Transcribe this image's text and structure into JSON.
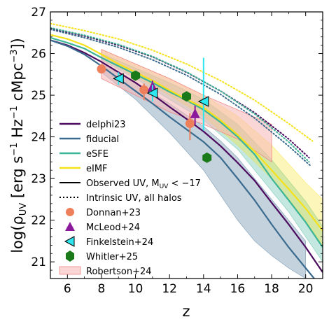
{
  "chart_data": {
    "type": "line",
    "xlabel": "z",
    "ylabel_parts": [
      "log(ρ",
      "UV",
      " [erg s",
      "−1",
      " Hz",
      "−1",
      " cMpc",
      "−3",
      "])"
    ],
    "xlim": [
      5,
      21
    ],
    "ylim": [
      20.6,
      27
    ],
    "x_ticks": [
      6,
      8,
      10,
      12,
      14,
      16,
      18,
      20
    ],
    "y_ticks": [
      21,
      22,
      23,
      24,
      25,
      26,
      27
    ],
    "grid": false,
    "legend_position": "lower-left",
    "legend": {
      "delphi23": "delphi23",
      "fiducial": "fiducial",
      "esfe": "eSFE",
      "eimf": "eIMF",
      "observed": [
        "Observed UV, M",
        "UV",
        " < −17"
      ],
      "intrinsic": "Intrinsic UV, all halos",
      "donnan": "Donnan+23",
      "mcleod": "McLeod+24",
      "finkelstein": "Finkelstein+24",
      "whitler": "Whitler+25",
      "robertson": "Robertson+24"
    },
    "colors": {
      "delphi23": "#4b0a5e",
      "fiducial": "#3a6b8f",
      "esfe": "#3cb496",
      "eimf": "#f5e21a",
      "donnan": "#ee7f5b",
      "mcleod": "#8a1a9b",
      "finkelstein": "#2ee6f0",
      "whitler": "#1a7a1a",
      "robertson": "#f8b4b4"
    },
    "series": [
      {
        "key": "delphi23",
        "style": "solid",
        "x": [
          5,
          6,
          7,
          8,
          9,
          10,
          11,
          12,
          13,
          14,
          15,
          16,
          17,
          18,
          19,
          20,
          21
        ],
        "y": [
          26.32,
          26.2,
          26.02,
          25.8,
          25.55,
          25.3,
          25.02,
          24.72,
          24.43,
          24.13,
          23.78,
          23.38,
          22.95,
          22.42,
          21.9,
          21.35,
          20.75
        ]
      },
      {
        "key": "fiducial",
        "style": "solid",
        "x": [
          5,
          6,
          7,
          8,
          9,
          10,
          11,
          12,
          13,
          14,
          15,
          16,
          17,
          18,
          19,
          20,
          20.5
        ],
        "y": [
          26.32,
          26.18,
          25.98,
          25.7,
          25.4,
          25.1,
          24.8,
          24.48,
          24.18,
          23.88,
          23.5,
          23.0,
          22.48,
          21.9,
          21.35,
          20.85,
          20.6
        ]
      },
      {
        "key": "esfe",
        "style": "solid",
        "x": [
          5,
          6,
          7,
          8,
          9,
          10,
          11,
          12,
          13,
          14,
          15,
          16,
          17,
          18,
          19,
          20,
          21
        ],
        "y": [
          26.38,
          26.26,
          26.12,
          25.9,
          25.7,
          25.5,
          25.3,
          25.08,
          24.88,
          24.65,
          24.35,
          24.0,
          23.58,
          23.0,
          22.48,
          21.95,
          21.35
        ]
      },
      {
        "key": "eimf",
        "style": "solid",
        "x": [
          5,
          6,
          7,
          8,
          9,
          10,
          11,
          12,
          13,
          14,
          15,
          16,
          17,
          18,
          19,
          20,
          21
        ],
        "y": [
          26.45,
          26.35,
          26.2,
          25.98,
          25.75,
          25.55,
          25.35,
          25.12,
          24.9,
          24.7,
          24.4,
          24.05,
          23.65,
          23.2,
          22.75,
          22.28,
          21.75
        ]
      },
      {
        "key": "delphi23",
        "style": "dotted",
        "x": [
          5,
          7,
          9,
          11,
          13,
          15,
          17,
          19,
          20.2
        ],
        "y": [
          26.6,
          26.42,
          26.2,
          25.92,
          25.55,
          25.1,
          24.58,
          23.95,
          23.5
        ]
      },
      {
        "key": "fiducial",
        "style": "dotted",
        "x": [
          5,
          7,
          9,
          11,
          13,
          15,
          17,
          19,
          20.3
        ],
        "y": [
          26.58,
          26.38,
          26.15,
          25.85,
          25.48,
          25.02,
          24.45,
          23.78,
          23.3
        ]
      },
      {
        "key": "esfe",
        "style": "dotted",
        "x": [
          5,
          7,
          9,
          11,
          13,
          15,
          17,
          19,
          20.2
        ],
        "y": [
          26.62,
          26.44,
          26.22,
          25.93,
          25.56,
          25.1,
          24.55,
          23.88,
          23.4
        ]
      },
      {
        "key": "eimf",
        "style": "dotted",
        "x": [
          5,
          7,
          9,
          11,
          13,
          15,
          17,
          19,
          20.4
        ],
        "y": [
          26.72,
          26.55,
          26.35,
          26.08,
          25.75,
          25.35,
          24.88,
          24.32,
          23.9
        ]
      }
    ],
    "bands": [
      {
        "key": "fiducial",
        "x": [
          8,
          10,
          12,
          14,
          15,
          16,
          17,
          18,
          19,
          20
        ],
        "lo": [
          25.55,
          24.9,
          24.1,
          23.2,
          22.6,
          22.0,
          21.5,
          21.15,
          20.85,
          20.6
        ],
        "hi": [
          25.8,
          25.3,
          24.8,
          24.25,
          23.9,
          23.5,
          23.0,
          22.5,
          22.0,
          21.5
        ]
      },
      {
        "key": "esfe",
        "x": [
          8,
          10,
          12,
          14,
          16,
          18,
          19,
          20,
          21
        ],
        "lo": [
          25.85,
          25.4,
          24.9,
          24.4,
          23.7,
          22.7,
          22.2,
          21.6,
          21.0
        ],
        "hi": [
          26.0,
          25.65,
          25.3,
          24.9,
          24.3,
          23.45,
          22.95,
          22.45,
          21.85
        ]
      },
      {
        "key": "eimf",
        "x": [
          8,
          10,
          12,
          14,
          16,
          18,
          19,
          20,
          21
        ],
        "lo": [
          25.9,
          25.45,
          25.0,
          24.5,
          23.8,
          23.0,
          22.5,
          22.0,
          21.4
        ],
        "hi": [
          26.1,
          25.75,
          25.4,
          25.0,
          24.5,
          23.8,
          23.35,
          22.9,
          22.5
        ]
      }
    ],
    "robertson_band": {
      "x": [
        8,
        10,
        12,
        14,
        16,
        18
      ],
      "lo": [
        25.4,
        25.0,
        24.6,
        24.3,
        23.95,
        23.4
      ],
      "hi": [
        26.1,
        25.75,
        25.4,
        25.0,
        24.65,
        24.3
      ]
    },
    "points": {
      "donnan": [
        {
          "x": 8.0,
          "y": 25.63,
          "yerr": [
            0.1,
            0.1
          ]
        },
        {
          "x": 10.5,
          "y": 25.13,
          "yerr": [
            0.25,
            0.15
          ]
        },
        {
          "x": 13.2,
          "y": 24.32,
          "yerr": [
            0.4,
            0.25
          ]
        }
      ],
      "mcleod": [
        {
          "x": 11.0,
          "y": 25.2,
          "yerr": [
            0.2,
            0.15
          ]
        },
        {
          "x": 13.5,
          "y": 24.55,
          "yerr": [
            0.25,
            0.2
          ]
        }
      ],
      "finkelstein": [
        {
          "x": 9.0,
          "y": 25.4,
          "yerr": [
            0.15,
            0.15
          ]
        },
        {
          "x": 11.0,
          "y": 25.05,
          "yerr": [
            0.2,
            0.2
          ]
        },
        {
          "x": 14.0,
          "y": 24.85,
          "yerr": [
            0.7,
            1.05
          ]
        }
      ],
      "whitler": [
        {
          "x": 10.0,
          "y": 25.47
        },
        {
          "x": 13.0,
          "y": 24.97
        },
        {
          "x": 14.2,
          "y": 23.5
        }
      ]
    }
  }
}
